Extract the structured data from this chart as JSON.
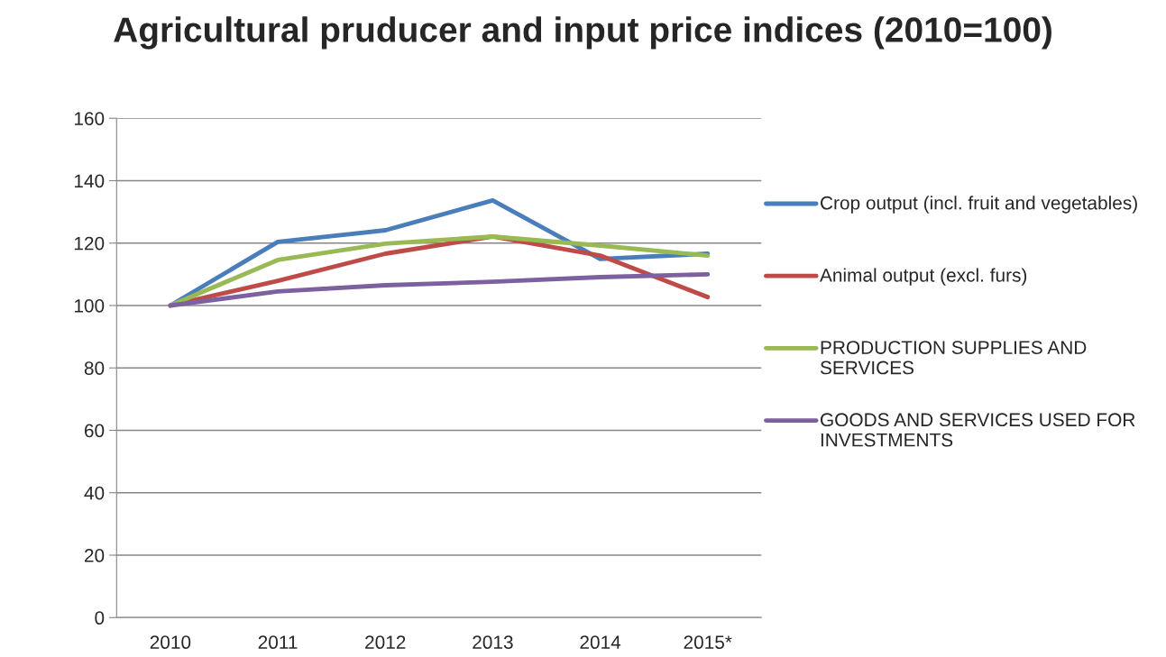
{
  "chart_data": {
    "type": "line",
    "title": "Agricultural pruducer and input price indices (2010=100)",
    "categories": [
      "2010",
      "2011",
      "2012",
      "2013",
      "2014",
      "2015*"
    ],
    "series": [
      {
        "name": "Crop output (incl. fruit and vegetables)",
        "color": "#4a7ebb",
        "values": [
          100,
          120.4,
          124.1,
          133.7,
          114.9,
          116.6
        ]
      },
      {
        "name": "Animal output (excl. furs)",
        "color": "#be4b48",
        "values": [
          100,
          107.9,
          116.6,
          122.1,
          116.0,
          102.7
        ]
      },
      {
        "name": "PRODUCTION SUPPLIES AND SERVICES",
        "color": "#98b954",
        "values": [
          100,
          114.6,
          119.8,
          122.1,
          119.2,
          116.0
        ]
      },
      {
        "name": "GOODS AND SERVICES USED FOR INVESTMENTS",
        "color": "#7d60a0",
        "values": [
          100,
          104.5,
          106.5,
          107.6,
          109.1,
          110.0
        ]
      }
    ],
    "ylim": [
      0,
      160
    ],
    "yticks": [
      0,
      20,
      40,
      60,
      80,
      100,
      120,
      140,
      160
    ],
    "grid": "y",
    "legend": "right",
    "marker": "none",
    "line_style": "solid"
  }
}
